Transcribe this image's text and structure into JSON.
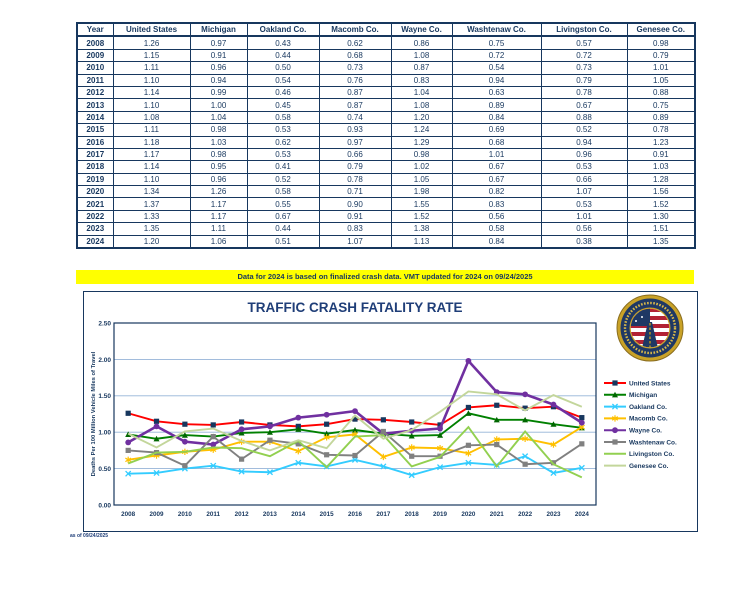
{
  "page": {
    "footer_note": "as of 09/24/2025",
    "accent_color": "#17375E"
  },
  "banner": {
    "text": "Data for 2024 is based on finalized crash data. VMT updated for 2024 on 09/24/2025",
    "bg": "#FFFF00",
    "fg": "#17375E"
  },
  "table": {
    "headers": [
      "Year",
      "United States",
      "Michigan",
      "Oakland Co.",
      "Macomb Co.",
      "Wayne Co.",
      "Washtenaw Co.",
      "Livingston Co.",
      "Genesee Co."
    ],
    "rows": [
      [
        "2008",
        "1.26",
        "0.97",
        "0.43",
        "0.62",
        "0.86",
        "0.75",
        "0.57",
        "0.98"
      ],
      [
        "2009",
        "1.15",
        "0.91",
        "0.44",
        "0.68",
        "1.08",
        "0.72",
        "0.72",
        "0.79"
      ],
      [
        "2010",
        "1.11",
        "0.96",
        "0.50",
        "0.73",
        "0.87",
        "0.54",
        "0.73",
        "1.01"
      ],
      [
        "2011",
        "1.10",
        "0.94",
        "0.54",
        "0.76",
        "0.83",
        "0.94",
        "0.79",
        "1.05"
      ],
      [
        "2012",
        "1.14",
        "0.99",
        "0.46",
        "0.87",
        "1.04",
        "0.63",
        "0.78",
        "0.88"
      ],
      [
        "2013",
        "1.10",
        "1.00",
        "0.45",
        "0.87",
        "1.08",
        "0.89",
        "0.67",
        "0.75"
      ],
      [
        "2014",
        "1.08",
        "1.04",
        "0.58",
        "0.74",
        "1.20",
        "0.84",
        "0.88",
        "0.89"
      ],
      [
        "2015",
        "1.11",
        "0.98",
        "0.53",
        "0.93",
        "1.24",
        "0.69",
        "0.52",
        "0.78"
      ],
      [
        "2016",
        "1.18",
        "1.03",
        "0.62",
        "0.97",
        "1.29",
        "0.68",
        "0.94",
        "1.23"
      ],
      [
        "2017",
        "1.17",
        "0.98",
        "0.53",
        "0.66",
        "0.98",
        "1.01",
        "0.96",
        "0.91"
      ],
      [
        "2018",
        "1.14",
        "0.95",
        "0.41",
        "0.79",
        "1.02",
        "0.67",
        "0.53",
        "1.03"
      ],
      [
        "2019",
        "1.10",
        "0.96",
        "0.52",
        "0.78",
        "1.05",
        "0.67",
        "0.66",
        "1.28"
      ],
      [
        "2020",
        "1.34",
        "1.26",
        "0.58",
        "0.71",
        "1.98",
        "0.82",
        "1.07",
        "1.56"
      ],
      [
        "2021",
        "1.37",
        "1.17",
        "0.55",
        "0.90",
        "1.55",
        "0.83",
        "0.53",
        "1.52"
      ],
      [
        "2022",
        "1.33",
        "1.17",
        "0.67",
        "0.91",
        "1.52",
        "0.56",
        "1.01",
        "1.30"
      ],
      [
        "2023",
        "1.35",
        "1.11",
        "0.44",
        "0.83",
        "1.38",
        "0.58",
        "0.56",
        "1.51"
      ],
      [
        "2024",
        "1.20",
        "1.06",
        "0.51",
        "1.07",
        "1.13",
        "0.84",
        "0.38",
        "1.35"
      ]
    ]
  },
  "chart_data": {
    "type": "line",
    "title": "TRAFFIC CRASH FATALITY RATE",
    "xlabel": "",
    "ylabel": "Deaths Per 100 Million Vehicle Miles of Travel",
    "ylim": [
      0,
      2.5
    ],
    "ytick_step": 0.5,
    "yticks": [
      "0.00",
      "0.50",
      "1.00",
      "1.50",
      "2.00",
      "2.50"
    ],
    "grid": true,
    "legend_position": "right",
    "logo": "transportation-safety-seal",
    "categories": [
      "2008",
      "2009",
      "2010",
      "2011",
      "2012",
      "2013",
      "2014",
      "2015",
      "2016",
      "2017",
      "2018",
      "2019",
      "2020",
      "2021",
      "2022",
      "2023",
      "2024"
    ],
    "series": [
      {
        "name": "United States",
        "color": "#FF0000",
        "marker": "square",
        "marker_color": "#17375E",
        "values": [
          1.26,
          1.15,
          1.11,
          1.1,
          1.14,
          1.1,
          1.08,
          1.11,
          1.18,
          1.17,
          1.14,
          1.1,
          1.34,
          1.37,
          1.33,
          1.35,
          1.2
        ]
      },
      {
        "name": "Michigan",
        "color": "#008000",
        "marker": "triangle",
        "marker_color": "#006600",
        "values": [
          0.97,
          0.91,
          0.96,
          0.94,
          0.99,
          1.0,
          1.04,
          0.98,
          1.03,
          0.98,
          0.95,
          0.96,
          1.26,
          1.17,
          1.17,
          1.11,
          1.06
        ]
      },
      {
        "name": "Oakland Co.",
        "color": "#33CCFF",
        "marker": "x",
        "marker_color": "#33CCFF",
        "values": [
          0.43,
          0.44,
          0.5,
          0.54,
          0.46,
          0.45,
          0.58,
          0.53,
          0.62,
          0.53,
          0.41,
          0.52,
          0.58,
          0.55,
          0.67,
          0.44,
          0.51
        ]
      },
      {
        "name": "Macomb Co.",
        "color": "#FFC000",
        "marker": "star",
        "marker_color": "#FFC000",
        "values": [
          0.62,
          0.68,
          0.73,
          0.76,
          0.87,
          0.87,
          0.74,
          0.93,
          0.97,
          0.66,
          0.79,
          0.78,
          0.71,
          0.9,
          0.91,
          0.83,
          1.07
        ]
      },
      {
        "name": "Wayne Co.",
        "color": "#7030A0",
        "marker": "circle",
        "marker_color": "#7030A0",
        "values": [
          0.86,
          1.08,
          0.87,
          0.83,
          1.04,
          1.08,
          1.2,
          1.24,
          1.29,
          0.98,
          1.02,
          1.05,
          1.98,
          1.55,
          1.52,
          1.38,
          1.13
        ]
      },
      {
        "name": "Washtenaw Co.",
        "color": "#808080",
        "marker": "square",
        "marker_color": "#808080",
        "values": [
          0.75,
          0.72,
          0.54,
          0.94,
          0.63,
          0.89,
          0.84,
          0.69,
          0.68,
          1.01,
          0.67,
          0.67,
          0.82,
          0.83,
          0.56,
          0.58,
          0.84
        ]
      },
      {
        "name": "Livingston Co.",
        "color": "#92D050",
        "marker": "none",
        "marker_color": "#92D050",
        "values": [
          0.57,
          0.72,
          0.73,
          0.79,
          0.78,
          0.67,
          0.88,
          0.52,
          0.94,
          0.96,
          0.53,
          0.66,
          1.07,
          0.53,
          1.01,
          0.56,
          0.38
        ]
      },
      {
        "name": "Genesee Co.",
        "color": "#C3D69B",
        "marker": "none",
        "marker_color": "#C3D69B",
        "values": [
          0.98,
          0.79,
          1.01,
          1.05,
          0.88,
          0.75,
          0.89,
          0.78,
          1.23,
          0.91,
          1.03,
          1.28,
          1.56,
          1.52,
          1.3,
          1.51,
          1.35
        ]
      }
    ]
  }
}
